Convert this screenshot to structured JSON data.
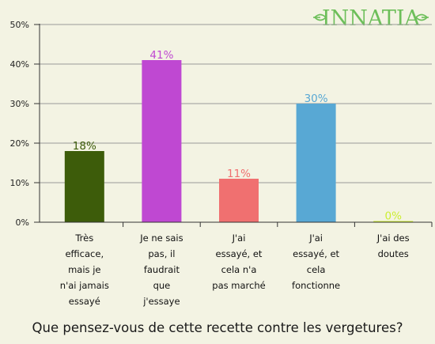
{
  "logo": {
    "text": "INNATIA",
    "color": "#6dbf5a"
  },
  "question": "Que pensez-vous de cette recette contre les vergetures?",
  "colors": {
    "background": "#f3f3e3",
    "gridline": "#9a9a9a",
    "axis": "#333333",
    "label_text": "#222222"
  },
  "chart_data": {
    "type": "bar",
    "title": "",
    "xlabel": "",
    "ylabel": "",
    "ylim": [
      0,
      50
    ],
    "y_ticks": [
      "0%",
      "10%",
      "20%",
      "30%",
      "40%",
      "50%"
    ],
    "y_tick_values": [
      0,
      10,
      20,
      30,
      40,
      50
    ],
    "grid": true,
    "legend": "none",
    "categories": [
      [
        "Très",
        "efficace,",
        "mais je",
        "n'ai jamais",
        "essayé"
      ],
      [
        "Je ne sais",
        "pas, il",
        "faudrait",
        "que",
        "j'essaye"
      ],
      [
        "J'ai",
        "essayé, et",
        "cela n'a",
        "pas marché"
      ],
      [
        "J'ai",
        "essayé, et",
        "cela",
        "fonctionne"
      ],
      [
        "J'ai des",
        "doutes"
      ]
    ],
    "values": [
      18,
      41,
      11,
      30,
      0
    ],
    "data_labels": [
      "18%",
      "41%",
      "11%",
      "30%",
      "0%"
    ],
    "bar_colors": [
      "#3d5c0a",
      "#bf48d2",
      "#f07070",
      "#58a8d4",
      "#ccee33"
    ]
  }
}
